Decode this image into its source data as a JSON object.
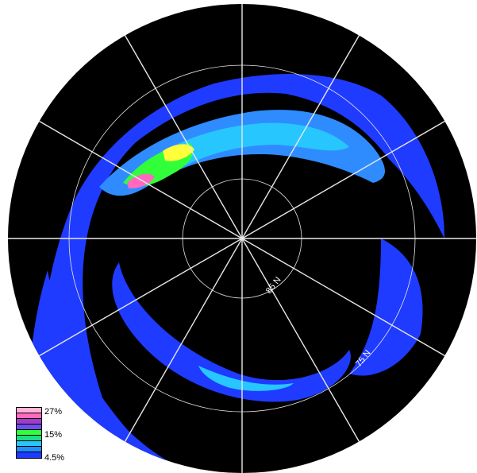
{
  "colors": {
    "ocean": "#000000",
    "grid": "#e8e8e8",
    "scale": [
      "#1f3bff",
      "#2f8cff",
      "#27c6ff",
      "#1dde83",
      "#30ff3a",
      "#a7ff2e",
      "#ffff3a",
      "#9f3cc8",
      "#ff6ac0",
      "#ffb3d8"
    ]
  },
  "map": {
    "lat_labels": [
      "85 N",
      "75 N"
    ]
  },
  "legend": {
    "labels": [
      "27%",
      "15%",
      "4.5%"
    ],
    "swatch_colors": [
      "#ffb3d8",
      "#ff6ac0",
      "#9f3cc8",
      "#6a4ef0",
      "#30ff3a",
      "#1dde83",
      "#27c6ff",
      "#1f8fff",
      "#1f3bff"
    ]
  }
}
